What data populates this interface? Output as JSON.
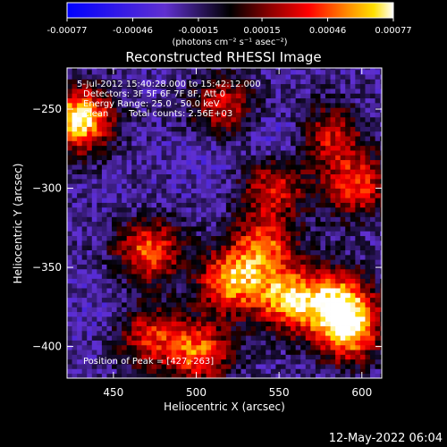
{
  "chart_data": {
    "type": "heatmap",
    "title": "Reconstructed RHESSI Image",
    "xlabel": "Heliocentric X (arcsec)",
    "ylabel": "Heliocentric Y (arcsec)",
    "xlim": [
      422,
      612
    ],
    "ylim": [
      -420,
      -224
    ],
    "x_ticks": [
      450,
      500,
      550,
      600
    ],
    "y_ticks": [
      -400,
      -350,
      -300,
      -250
    ],
    "colorbar": {
      "range": [
        -0.00077,
        0.00077
      ],
      "tick_values": [
        -0.00077,
        -0.00046,
        -0.00015,
        0.00015,
        0.00046,
        0.00077
      ],
      "tick_labels": [
        "-0.00077",
        "-0.00046",
        "-0.00015",
        "0.00015",
        "0.00046",
        "0.00077"
      ],
      "unit_label": "(photons cm⁻² s⁻¹ asec⁻²)"
    },
    "annotations": {
      "time": "5-Jul-2012 15:40:28.000 to 15:42:12.000",
      "detectors": "Detectors: 3F 5F 6F 7F 8F, Att 0",
      "energy": "Energy Range: 25.0 - 50.0 keV",
      "method": "Clean",
      "counts": "Total counts: 2.56E+03",
      "peak": "Position of Peak = [427,-263]"
    },
    "peak_position": [
      427,
      -263
    ],
    "hotspots": [
      {
        "x": 428,
        "y": -258,
        "intensity": 0.00077
      },
      {
        "x": 520,
        "y": -360,
        "intensity": 0.0006
      },
      {
        "x": 555,
        "y": -372,
        "intensity": 0.00062
      },
      {
        "x": 590,
        "y": -392,
        "intensity": 0.0006
      },
      {
        "x": 585,
        "y": -372,
        "intensity": 0.00052
      },
      {
        "x": 470,
        "y": -340,
        "intensity": 0.00048
      },
      {
        "x": 500,
        "y": -405,
        "intensity": 0.00048
      },
      {
        "x": 540,
        "y": -338,
        "intensity": 0.00042
      },
      {
        "x": 595,
        "y": -300,
        "intensity": 0.0004
      },
      {
        "x": 545,
        "y": -300,
        "intensity": 0.00032
      },
      {
        "x": 470,
        "y": -395,
        "intensity": 0.00032
      },
      {
        "x": 515,
        "y": -250,
        "intensity": 0.0003
      },
      {
        "x": 580,
        "y": -268,
        "intensity": 0.00028
      }
    ],
    "coldspots": [
      {
        "x": 545,
        "y": -272,
        "intensity": -0.0004
      },
      {
        "x": 505,
        "y": -282,
        "intensity": -0.00032
      },
      {
        "x": 440,
        "y": -380,
        "intensity": -0.0003
      },
      {
        "x": 465,
        "y": -318,
        "intensity": -0.00026
      }
    ]
  },
  "footer": {
    "timestamp": "12-May-2022 06:04"
  }
}
